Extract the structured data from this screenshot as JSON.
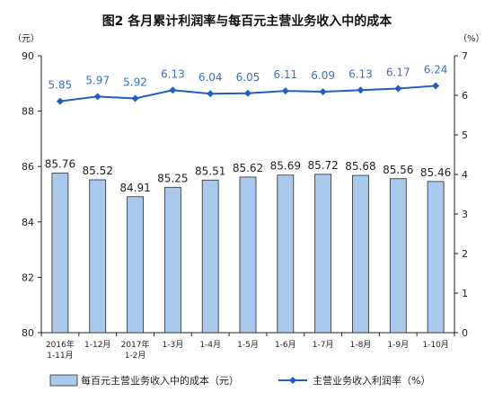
{
  "chart_data": {
    "type": "bar",
    "title": "图2  各月累计利润率与每百元主营业务收入中的成本",
    "left_unit": "（元）",
    "right_unit": "（%）",
    "categories": [
      [
        "2016年",
        "1-11月"
      ],
      [
        "1-12月"
      ],
      [
        "2017年",
        "1-2月"
      ],
      [
        "1-3月"
      ],
      [
        "1-4月"
      ],
      [
        "1-5月"
      ],
      [
        "1-6月"
      ],
      [
        "1-7月"
      ],
      [
        "1-8月"
      ],
      [
        "1-9月"
      ],
      [
        "1-10月"
      ]
    ],
    "series": [
      {
        "name": "每百元主营业务收入中的成本（元）",
        "type": "bar",
        "axis": "left",
        "color": "#a8c8ec",
        "values": [
          85.76,
          85.52,
          84.91,
          85.25,
          85.51,
          85.62,
          85.69,
          85.72,
          85.68,
          85.56,
          85.46
        ],
        "labels": [
          "85.76",
          "85.52",
          "84.91",
          "85.25",
          "85.51",
          "85.62",
          "85.69",
          "85.72",
          "85.68",
          "85.56",
          "85.46"
        ]
      },
      {
        "name": "主营业务收入利润率（%）",
        "type": "line",
        "axis": "right",
        "color": "#1f5fc0",
        "label_color": "#3a6fd0",
        "values": [
          5.85,
          5.97,
          5.92,
          6.13,
          6.04,
          6.05,
          6.11,
          6.09,
          6.13,
          6.17,
          6.24
        ],
        "labels": [
          "5.85",
          "5.97",
          "5.92",
          "6.13",
          "6.04",
          "6.05",
          "6.11",
          "6.09",
          "6.13",
          "6.17",
          "6.24"
        ]
      }
    ],
    "left_axis": {
      "ylim": [
        80,
        90
      ],
      "ticks": [
        80,
        82,
        84,
        86,
        88,
        90
      ]
    },
    "right_axis": {
      "ylim": [
        0,
        7
      ],
      "ticks": [
        0,
        1,
        2,
        3,
        4,
        5,
        6,
        7
      ]
    },
    "grid": false,
    "legend_position": "bottom"
  }
}
